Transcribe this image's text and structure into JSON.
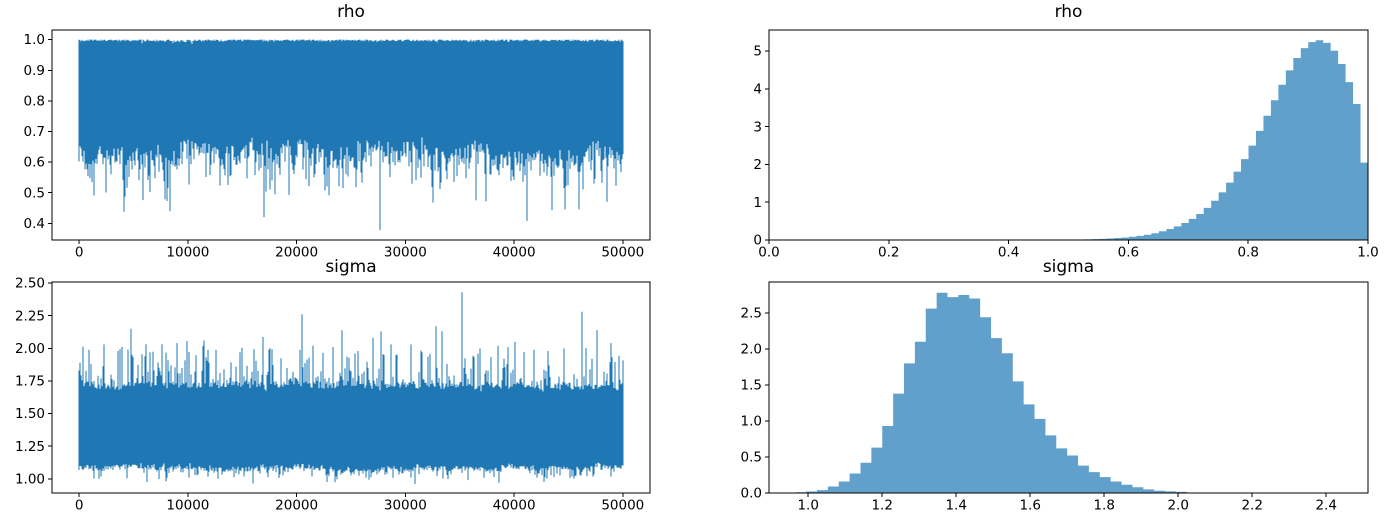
{
  "figure": {
    "background": "#ffffff",
    "line_color": "#1f77b4",
    "hist_fill": "#61a0cb",
    "axis_color": "#000000",
    "text_color": "#000000"
  },
  "chart_data": [
    {
      "id": "rho-trace",
      "type": "line",
      "title": "rho",
      "xlim": [
        -2500,
        52500
      ],
      "ylim": [
        0.3455,
        1.0315
      ],
      "xticks": [
        0,
        10000,
        20000,
        30000,
        40000,
        50000
      ],
      "xtick_labels": [
        "0",
        "10000",
        "20000",
        "30000",
        "40000",
        "50000"
      ],
      "yticks": [
        0.4,
        0.5,
        0.6,
        0.7,
        0.8,
        0.9,
        1.0
      ],
      "ytick_labels": [
        "0.4",
        "0.5",
        "0.6",
        "0.7",
        "0.8",
        "0.9",
        "1.0"
      ],
      "trace": {
        "n_samples": 50000,
        "x_start": 0,
        "x_end": 50000,
        "seed": 1234,
        "top": {
          "base": 0.998,
          "wander": 0.002,
          "fuzz": 0.004,
          "spike": {
            "prob": 0.08,
            "pow": 3,
            "max": -0.012
          },
          "clamp": [
            0.3766,
            1.0
          ]
        },
        "bottom": {
          "base": 0.627,
          "wander": 0.045,
          "fuzz": 0.03,
          "spike": {
            "prob": 0.5,
            "pow": 2,
            "max": 0.11
          },
          "deep": {
            "prob": 0.02,
            "lo": 0.41,
            "hi": 0.53
          },
          "clamp": [
            0.3766,
            1.0
          ]
        },
        "extremes_bottom": [
          [
            4200,
            0.487
          ],
          [
            17000,
            0.42
          ],
          [
            23000,
            0.492
          ],
          [
            27700,
            0.378
          ],
          [
            32500,
            0.468
          ],
          [
            36500,
            0.475
          ],
          [
            41200,
            0.408
          ],
          [
            43500,
            0.443
          ],
          [
            46000,
            0.446
          ],
          [
            48500,
            0.47
          ]
        ]
      }
    },
    {
      "id": "rho-hist",
      "type": "bar",
      "title": "rho",
      "xlim": [
        0,
        1
      ],
      "ylim": [
        0,
        5.56
      ],
      "xticks": [
        0,
        0.2,
        0.4,
        0.6,
        0.8,
        1.0
      ],
      "xtick_labels": [
        "0.0",
        "0.2",
        "0.4",
        "0.6",
        "0.8",
        "1.0"
      ],
      "yticks": [
        0,
        1,
        2,
        3,
        4,
        5
      ],
      "ytick_labels": [
        "0",
        "1",
        "2",
        "3",
        "4",
        "5"
      ],
      "bins": {
        "start": 0.3766,
        "width": 0.012468,
        "heights": [
          0.002,
          0,
          0.002,
          0,
          0.002,
          0.003,
          0.003,
          0.004,
          0.006,
          0.008,
          0.01,
          0.014,
          0.018,
          0.024,
          0.031,
          0.04,
          0.052,
          0.067,
          0.086,
          0.11,
          0.14,
          0.18,
          0.23,
          0.29,
          0.36,
          0.45,
          0.56,
          0.69,
          0.85,
          1.04,
          1.26,
          1.52,
          1.81,
          2.14,
          2.5,
          2.89,
          3.29,
          3.7,
          4.11,
          4.49,
          4.82,
          5.08,
          5.24,
          5.29,
          5.22,
          5.01,
          4.66,
          4.18,
          3.6,
          2.05
        ]
      }
    },
    {
      "id": "sigma-trace",
      "type": "line",
      "title": "sigma",
      "xlim": [
        -2500,
        52500
      ],
      "ylim": [
        0.8915,
        2.5085
      ],
      "xticks": [
        0,
        10000,
        20000,
        30000,
        40000,
        50000
      ],
      "xtick_labels": [
        "0",
        "10000",
        "20000",
        "30000",
        "40000",
        "50000"
      ],
      "yticks": [
        1.0,
        1.25,
        1.5,
        1.75,
        2.0,
        2.25,
        2.5
      ],
      "ytick_labels": [
        "1.00",
        "1.25",
        "1.50",
        "1.75",
        "2.00",
        "2.25",
        "2.50"
      ],
      "trace": {
        "n_samples": 50000,
        "x_start": 0,
        "x_end": 50000,
        "seed": 777,
        "top": {
          "base": 1.71,
          "wander": 0.03,
          "fuzz": 0.025,
          "spike": {
            "prob": 0.55,
            "pow": 2,
            "max": 0.33
          },
          "deep": {
            "prob": 0.01,
            "lo": 2.05,
            "hi": 2.18
          },
          "clamp": [
            0.955,
            2.435
          ]
        },
        "bottom": {
          "base": 1.085,
          "wander": 0.025,
          "fuzz": 0.02,
          "spike": {
            "prob": 0.4,
            "pow": 2,
            "max": 0.09
          },
          "deep": {
            "prob": 0.006,
            "lo": 0.957,
            "hi": 0.995
          },
          "clamp": [
            0.955,
            2.435
          ]
        },
        "extremes_top": [
          [
            2300,
            2.03
          ],
          [
            3600,
            1.98
          ],
          [
            4800,
            2.15
          ],
          [
            6500,
            1.97
          ],
          [
            9000,
            2.04
          ],
          [
            11500,
            2.06
          ],
          [
            12600,
            1.99
          ],
          [
            14800,
            1.97
          ],
          [
            17500,
            1.99
          ],
          [
            20500,
            2.26
          ],
          [
            21500,
            2.02
          ],
          [
            23300,
            2.01
          ],
          [
            24200,
            2.14
          ],
          [
            25600,
            1.98
          ],
          [
            27000,
            2.08
          ],
          [
            28700,
            2.03
          ],
          [
            30500,
            2.03
          ],
          [
            31500,
            1.97
          ],
          [
            32800,
            2.17
          ],
          [
            33400,
            2.13
          ],
          [
            35200,
            2.43
          ],
          [
            36900,
            2.0
          ],
          [
            38500,
            2.02
          ],
          [
            40100,
            2.05
          ],
          [
            41800,
            1.99
          ],
          [
            43100,
            1.98
          ],
          [
            44600,
            2.0
          ],
          [
            46200,
            2.28
          ],
          [
            47600,
            2.14
          ],
          [
            48900,
            2.04
          ]
        ],
        "extremes_bottom": [
          [
            8000,
            0.98
          ],
          [
            16000,
            0.965
          ],
          [
            30900,
            0.96
          ],
          [
            38600,
            0.97
          ]
        ]
      }
    },
    {
      "id": "sigma-hist",
      "type": "bar",
      "title": "sigma",
      "xlim": [
        0.894,
        2.513
      ],
      "ylim": [
        0,
        2.93
      ],
      "xticks": [
        1.0,
        1.2,
        1.4,
        1.6,
        1.8,
        2.0,
        2.2,
        2.4
      ],
      "xtick_labels": [
        "1.0",
        "1.2",
        "1.4",
        "1.6",
        "1.8",
        "2.0",
        "2.2",
        "2.4"
      ],
      "yticks": [
        0,
        0.5,
        1.0,
        1.5,
        2.0,
        2.5
      ],
      "ytick_labels": [
        "0.0",
        "0.5",
        "1.0",
        "1.5",
        "2.0",
        "2.5"
      ],
      "bins": {
        "start": 0.9649,
        "width": 0.0294,
        "heights": [
          0.01,
          0.02,
          0.04,
          0.09,
          0.16,
          0.27,
          0.42,
          0.63,
          0.93,
          1.38,
          1.8,
          2.1,
          2.56,
          2.78,
          2.72,
          2.75,
          2.7,
          2.44,
          2.15,
          1.94,
          1.55,
          1.23,
          1.03,
          0.8,
          0.62,
          0.52,
          0.38,
          0.29,
          0.22,
          0.16,
          0.115,
          0.08,
          0.05,
          0.032,
          0.022,
          0.015,
          0.006,
          0.003,
          0.002,
          0.001,
          0.001,
          0,
          0.001,
          0,
          0,
          0.001,
          0,
          0,
          0,
          0.001
        ]
      }
    }
  ]
}
